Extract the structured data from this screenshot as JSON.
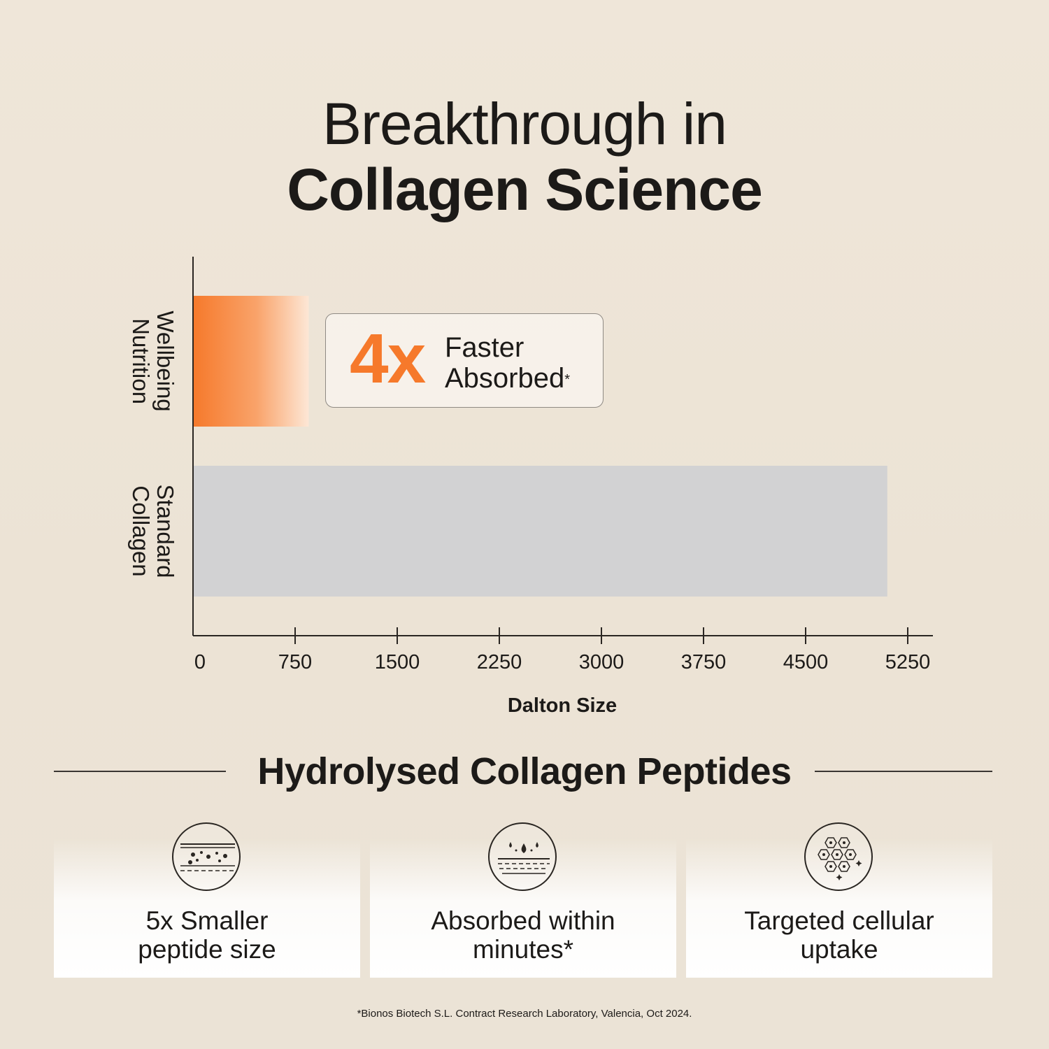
{
  "title": {
    "line1": "Breakthrough in",
    "line2": "Collagen Science"
  },
  "callout": {
    "big": "4x",
    "line1": "Faster",
    "line2": "Absorbed",
    "mark": "*"
  },
  "chart_data": {
    "type": "bar",
    "orientation": "horizontal",
    "categories": [
      "Wellbeing Nutrition",
      "Standard Collagen"
    ],
    "category_label_lines": [
      [
        "Wellbeing",
        "Nutrition"
      ],
      [
        "Standard",
        "Collagen"
      ]
    ],
    "values": [
      850,
      5100
    ],
    "xlabel": "Dalton Size",
    "ylabel": "",
    "xlim": [
      0,
      5250
    ],
    "xticks": [
      0,
      750,
      1500,
      2250,
      3000,
      3750,
      4500,
      5250
    ],
    "colors": [
      "#f6792b",
      "#d2d2d3"
    ],
    "grid": false
  },
  "section": {
    "title": "Hydrolysed Collagen Peptides"
  },
  "features": [
    {
      "icon": "particles-layers-icon",
      "line1": "5x Smaller",
      "line2": "peptide size"
    },
    {
      "icon": "droplets-layers-icon",
      "line1": "Absorbed within",
      "line2": "minutes*"
    },
    {
      "icon": "hexagon-cells-icon",
      "line1": "Targeted cellular",
      "line2": "uptake"
    }
  ],
  "footnote": "*Bionos Biotech S.L. Contract Research Laboratory, Valencia, Oct 2024."
}
